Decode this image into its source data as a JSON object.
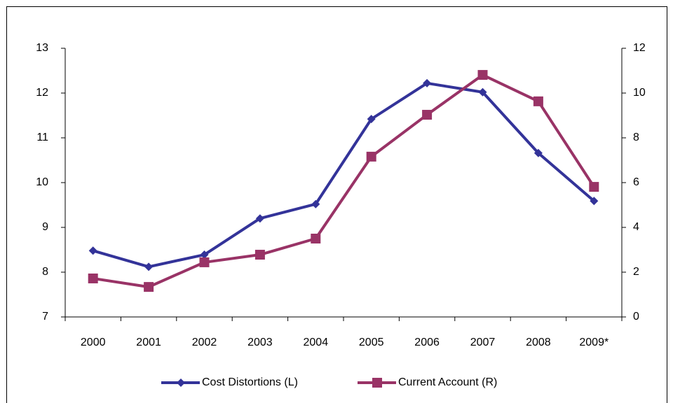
{
  "chart_data": {
    "type": "line",
    "categories": [
      "2000",
      "2001",
      "2002",
      "2003",
      "2004",
      "2005",
      "2006",
      "2007",
      "2008",
      "2009*"
    ],
    "series": [
      {
        "name": "Cost Distortions (L)",
        "color": "#333399",
        "marker": "diamond",
        "values": [
          8.48,
          8.12,
          8.39,
          9.2,
          9.52,
          11.42,
          12.22,
          12.02,
          10.66,
          9.59
        ]
      },
      {
        "name": "Current Account (R)",
        "color": "#993366",
        "marker": "square",
        "axis": "y2",
        "values": [
          1.72,
          1.34,
          2.44,
          2.78,
          3.5,
          7.16,
          9.03,
          10.81,
          9.63,
          5.81
        ]
      }
    ],
    "ylim": [
      7,
      13
    ],
    "yticks": [
      7,
      8,
      9,
      10,
      11,
      12,
      13
    ],
    "y2lim": [
      0,
      12
    ],
    "y2ticks": [
      0,
      2,
      4,
      6,
      8,
      10,
      12
    ],
    "grid": false,
    "legend": "bottom"
  }
}
